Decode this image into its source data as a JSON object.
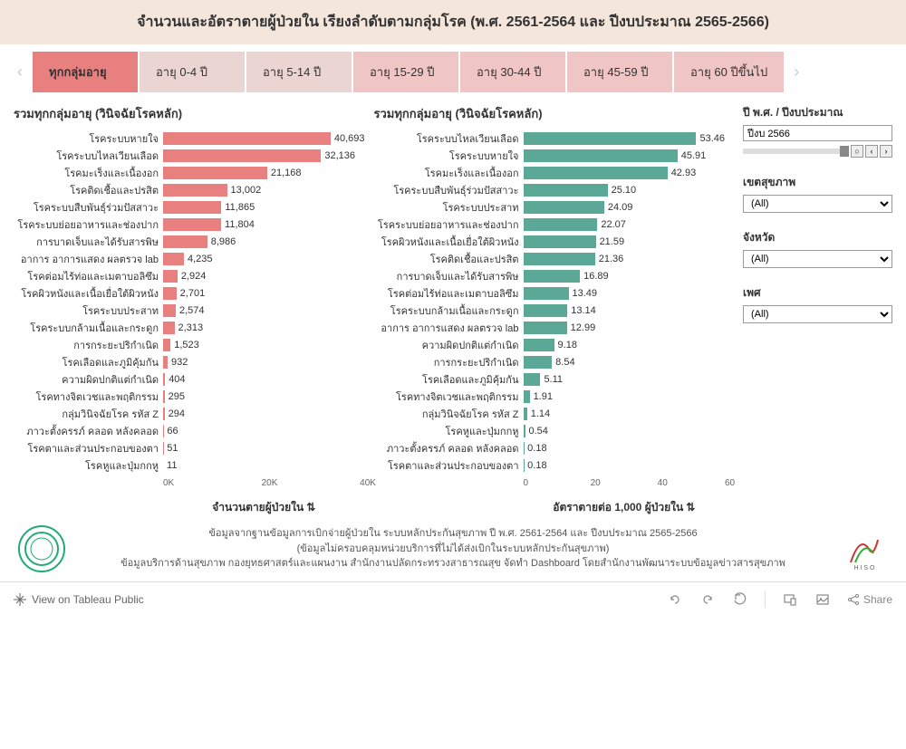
{
  "header": {
    "title": "จำนวนและอัตราตายผู้ป่วยใน เรียงลำดับตามกลุ่มโรค (พ.ศ. 2561-2564 และ ปีงบประมาณ 2565-2566)"
  },
  "tabs": {
    "items": [
      {
        "label": "ทุกกลุ่มอายุ",
        "active": true
      },
      {
        "label": "อายุ 0-4 ปี"
      },
      {
        "label": "อายุ 5-14 ปี"
      },
      {
        "label": "อายุ 15-29 ปี"
      },
      {
        "label": "อายุ 30-44 ปี"
      },
      {
        "label": "อายุ 45-59 ปี"
      },
      {
        "label": "อายุ 60 ปีขึ้นไป"
      }
    ]
  },
  "chart1": {
    "title": "รวมทุกกลุ่มอายุ (วินิจฉัยโรคหลัก)",
    "type": "bar",
    "axis_title": "จำนวนตายผู้ป่วยใน",
    "bar_color": "#e88080",
    "max": 41000,
    "ticks": [
      "0K",
      "20K",
      "40K"
    ],
    "tick_pos": [
      0,
      48.8,
      97.6
    ],
    "rows": [
      {
        "label": "โรคระบบหายใจ",
        "val": 40693,
        "txt": "40,693"
      },
      {
        "label": "โรคระบบไหลเวียนเลือด",
        "val": 32136,
        "txt": "32,136"
      },
      {
        "label": "โรคมะเร็งและเนื้องอก",
        "val": 21168,
        "txt": "21,168"
      },
      {
        "label": "โรคติดเชื้อและปรสิต",
        "val": 13002,
        "txt": "13,002"
      },
      {
        "label": "โรคระบบสืบพันธุ์ร่วมปัสสาวะ",
        "val": 11865,
        "txt": "11,865"
      },
      {
        "label": "โรคระบบย่อยอาหารและช่องปาก",
        "val": 11804,
        "txt": "11,804"
      },
      {
        "label": "การบาดเจ็บและได้รับสารพิษ",
        "val": 8986,
        "txt": "8,986"
      },
      {
        "label": "อาการ อาการแสดง ผลตรวจ lab",
        "val": 4235,
        "txt": "4,235"
      },
      {
        "label": "โรคต่อมไร้ท่อและเมตาบอลิซึม",
        "val": 2924,
        "txt": "2,924"
      },
      {
        "label": "โรคผิวหนังและเนื้อเยื่อใต้ผิวหนัง",
        "val": 2701,
        "txt": "2,701"
      },
      {
        "label": "โรคระบบประสาท",
        "val": 2574,
        "txt": "2,574"
      },
      {
        "label": "โรคระบบกล้ามเนื้อและกระดูก",
        "val": 2313,
        "txt": "2,313"
      },
      {
        "label": "การกระยะปริกำเนิด",
        "val": 1523,
        "txt": "1,523"
      },
      {
        "label": "โรคเลือดและภูมิคุ้มกัน",
        "val": 932,
        "txt": "932"
      },
      {
        "label": "ความผิดปกติแต่กำเนิด",
        "val": 404,
        "txt": "404"
      },
      {
        "label": "โรคทางจิตเวชและพฤติกรรม",
        "val": 295,
        "txt": "295"
      },
      {
        "label": "กลุ่มวินิจฉัยโรค รหัส Z",
        "val": 294,
        "txt": "294"
      },
      {
        "label": "ภาวะตั้งครรภ์ คลอด หลังคลอด",
        "val": 66,
        "txt": "66"
      },
      {
        "label": "โรคตาและส่วนประกอบของตา",
        "val": 51,
        "txt": "51"
      },
      {
        "label": "โรคหูและปุ่มกกหู",
        "val": 11,
        "txt": "11"
      }
    ]
  },
  "chart2": {
    "title": "รวมทุกกลุ่มอายุ (วินิจฉัยโรคหลัก)",
    "type": "bar",
    "axis_title": "อัตราตายต่อ 1,000 ผู้ป่วยใน",
    "bar_color": "#5ca896",
    "max": 60,
    "ticks": [
      "0",
      "20",
      "40",
      "60"
    ],
    "tick_pos": [
      0,
      33.3,
      66.6,
      100
    ],
    "rows": [
      {
        "label": "โรคระบบไหลเวียนเลือด",
        "val": 53.46,
        "txt": "53.46"
      },
      {
        "label": "โรคระบบหายใจ",
        "val": 45.91,
        "txt": "45.91"
      },
      {
        "label": "โรคมะเร็งและเนื้องอก",
        "val": 42.93,
        "txt": "42.93"
      },
      {
        "label": "โรคระบบสืบพันธุ์ร่วมปัสสาวะ",
        "val": 25.1,
        "txt": "25.10"
      },
      {
        "label": "โรคระบบประสาท",
        "val": 24.09,
        "txt": "24.09"
      },
      {
        "label": "โรคระบบย่อยอาหารและช่องปาก",
        "val": 22.07,
        "txt": "22.07"
      },
      {
        "label": "โรคผิวหนังและเนื้อเยื่อใต้ผิวหนัง",
        "val": 21.59,
        "txt": "21.59"
      },
      {
        "label": "โรคติดเชื้อและปรสิต",
        "val": 21.36,
        "txt": "21.36"
      },
      {
        "label": "การบาดเจ็บและได้รับสารพิษ",
        "val": 16.89,
        "txt": "16.89"
      },
      {
        "label": "โรคต่อมไร้ท่อและเมตาบอลิซึม",
        "val": 13.49,
        "txt": "13.49"
      },
      {
        "label": "โรคระบบกล้ามเนื้อและกระดูก",
        "val": 13.14,
        "txt": "13.14"
      },
      {
        "label": "อาการ อาการแสดง ผลตรวจ lab",
        "val": 12.99,
        "txt": "12.99"
      },
      {
        "label": "ความผิดปกติแต่กำเนิด",
        "val": 9.18,
        "txt": "9.18"
      },
      {
        "label": "การกระยะปริกำเนิด",
        "val": 8.54,
        "txt": "8.54"
      },
      {
        "label": "โรคเลือดและภูมิคุ้มกัน",
        "val": 5.11,
        "txt": "5.11"
      },
      {
        "label": "โรคทางจิตเวชและพฤติกรรม",
        "val": 1.91,
        "txt": "1.91"
      },
      {
        "label": "กลุ่มวินิจฉัยโรค รหัส Z",
        "val": 1.14,
        "txt": "1.14"
      },
      {
        "label": "โรคหูและปุ่มกกหู",
        "val": 0.54,
        "txt": "0.54"
      },
      {
        "label": "ภาวะตั้งครรภ์ คลอด หลังคลอด",
        "val": 0.18,
        "txt": "0.18"
      },
      {
        "label": "โรคตาและส่วนประกอบของตา",
        "val": 0.18,
        "txt": "0.18"
      }
    ]
  },
  "filters": {
    "year": {
      "label": "ปี พ.ศ. / ปีงบประมาณ",
      "value": "ปีงบ 2566"
    },
    "region": {
      "label": "เขตสุขภาพ",
      "value": "(All)"
    },
    "province": {
      "label": "จังหวัด",
      "value": "(All)"
    },
    "sex": {
      "label": "เพศ",
      "value": "(All)"
    }
  },
  "footer": {
    "line1": "ข้อมูลจากฐานข้อมูลการเบิกจ่ายผู้ป่วยใน ระบบหลักประกันสุขภาพ ปี พ.ศ. 2561-2564 และ ปีงบประมาณ 2565-2566",
    "line2": "(ข้อมูลไม่ครอบคลุมหน่วยบริการที่ไม่ได้ส่งเบิกในระบบหลักประกันสุขภาพ)",
    "line3": "ข้อมูลบริการด้านสุขภาพ กองยุทธศาสตร์และแผนงาน สำนักงานปลัดกระทรวงสาธารณสุข จัดทำ Dashboard โดยสำนักงานพัฒนาระบบข้อมูลข่าวสารสุขภาพ"
  },
  "bottombar": {
    "view_label": "View on Tableau Public",
    "share_label": "Share"
  },
  "colors": {
    "header_bg": "#f5e6dc",
    "tab_active": "#e88080",
    "tab_bg": "#f0c5c5",
    "bar_pink": "#e88080",
    "bar_teal": "#5ca896"
  }
}
